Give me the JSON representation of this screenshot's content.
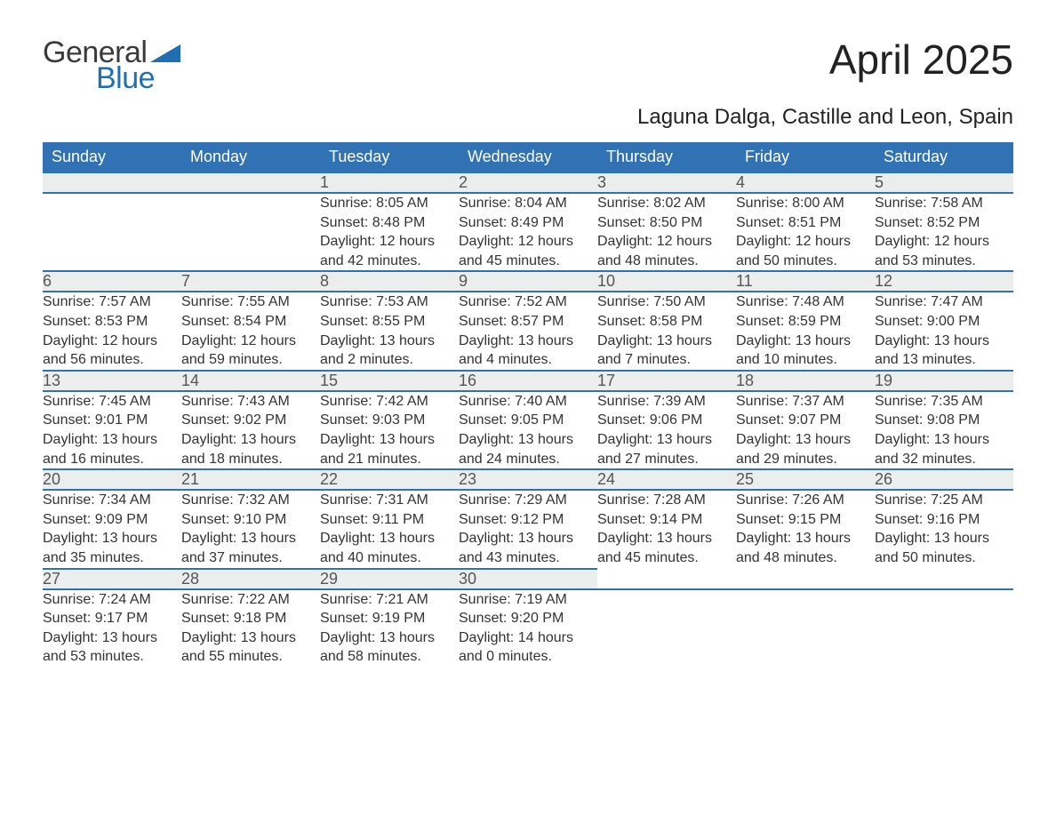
{
  "logo": {
    "text1": "General",
    "text2": "Blue",
    "wedge_color": "#1f6fb2"
  },
  "title": "April 2025",
  "location": "Laguna Dalga, Castille and Leon, Spain",
  "colors": {
    "header_bg": "#3072b3",
    "header_fg": "#ffffff",
    "daynum_bg": "#eceeee",
    "daynum_fg": "#555555",
    "rule": "#3072b3",
    "body_fg": "#333333",
    "page_bg": "#ffffff"
  },
  "typography": {
    "title_fontsize": 46,
    "location_fontsize": 24,
    "header_fontsize": 18,
    "daynum_fontsize": 18,
    "body_fontsize": 16
  },
  "weekdays": [
    "Sunday",
    "Monday",
    "Tuesday",
    "Wednesday",
    "Thursday",
    "Friday",
    "Saturday"
  ],
  "weeks": [
    [
      null,
      null,
      {
        "n": "1",
        "sunrise": "Sunrise: 8:05 AM",
        "sunset": "Sunset: 8:48 PM",
        "daylight": "Daylight: 12 hours and 42 minutes."
      },
      {
        "n": "2",
        "sunrise": "Sunrise: 8:04 AM",
        "sunset": "Sunset: 8:49 PM",
        "daylight": "Daylight: 12 hours and 45 minutes."
      },
      {
        "n": "3",
        "sunrise": "Sunrise: 8:02 AM",
        "sunset": "Sunset: 8:50 PM",
        "daylight": "Daylight: 12 hours and 48 minutes."
      },
      {
        "n": "4",
        "sunrise": "Sunrise: 8:00 AM",
        "sunset": "Sunset: 8:51 PM",
        "daylight": "Daylight: 12 hours and 50 minutes."
      },
      {
        "n": "5",
        "sunrise": "Sunrise: 7:58 AM",
        "sunset": "Sunset: 8:52 PM",
        "daylight": "Daylight: 12 hours and 53 minutes."
      }
    ],
    [
      {
        "n": "6",
        "sunrise": "Sunrise: 7:57 AM",
        "sunset": "Sunset: 8:53 PM",
        "daylight": "Daylight: 12 hours and 56 minutes."
      },
      {
        "n": "7",
        "sunrise": "Sunrise: 7:55 AM",
        "sunset": "Sunset: 8:54 PM",
        "daylight": "Daylight: 12 hours and 59 minutes."
      },
      {
        "n": "8",
        "sunrise": "Sunrise: 7:53 AM",
        "sunset": "Sunset: 8:55 PM",
        "daylight": "Daylight: 13 hours and 2 minutes."
      },
      {
        "n": "9",
        "sunrise": "Sunrise: 7:52 AM",
        "sunset": "Sunset: 8:57 PM",
        "daylight": "Daylight: 13 hours and 4 minutes."
      },
      {
        "n": "10",
        "sunrise": "Sunrise: 7:50 AM",
        "sunset": "Sunset: 8:58 PM",
        "daylight": "Daylight: 13 hours and 7 minutes."
      },
      {
        "n": "11",
        "sunrise": "Sunrise: 7:48 AM",
        "sunset": "Sunset: 8:59 PM",
        "daylight": "Daylight: 13 hours and 10 minutes."
      },
      {
        "n": "12",
        "sunrise": "Sunrise: 7:47 AM",
        "sunset": "Sunset: 9:00 PM",
        "daylight": "Daylight: 13 hours and 13 minutes."
      }
    ],
    [
      {
        "n": "13",
        "sunrise": "Sunrise: 7:45 AM",
        "sunset": "Sunset: 9:01 PM",
        "daylight": "Daylight: 13 hours and 16 minutes."
      },
      {
        "n": "14",
        "sunrise": "Sunrise: 7:43 AM",
        "sunset": "Sunset: 9:02 PM",
        "daylight": "Daylight: 13 hours and 18 minutes."
      },
      {
        "n": "15",
        "sunrise": "Sunrise: 7:42 AM",
        "sunset": "Sunset: 9:03 PM",
        "daylight": "Daylight: 13 hours and 21 minutes."
      },
      {
        "n": "16",
        "sunrise": "Sunrise: 7:40 AM",
        "sunset": "Sunset: 9:05 PM",
        "daylight": "Daylight: 13 hours and 24 minutes."
      },
      {
        "n": "17",
        "sunrise": "Sunrise: 7:39 AM",
        "sunset": "Sunset: 9:06 PM",
        "daylight": "Daylight: 13 hours and 27 minutes."
      },
      {
        "n": "18",
        "sunrise": "Sunrise: 7:37 AM",
        "sunset": "Sunset: 9:07 PM",
        "daylight": "Daylight: 13 hours and 29 minutes."
      },
      {
        "n": "19",
        "sunrise": "Sunrise: 7:35 AM",
        "sunset": "Sunset: 9:08 PM",
        "daylight": "Daylight: 13 hours and 32 minutes."
      }
    ],
    [
      {
        "n": "20",
        "sunrise": "Sunrise: 7:34 AM",
        "sunset": "Sunset: 9:09 PM",
        "daylight": "Daylight: 13 hours and 35 minutes."
      },
      {
        "n": "21",
        "sunrise": "Sunrise: 7:32 AM",
        "sunset": "Sunset: 9:10 PM",
        "daylight": "Daylight: 13 hours and 37 minutes."
      },
      {
        "n": "22",
        "sunrise": "Sunrise: 7:31 AM",
        "sunset": "Sunset: 9:11 PM",
        "daylight": "Daylight: 13 hours and 40 minutes."
      },
      {
        "n": "23",
        "sunrise": "Sunrise: 7:29 AM",
        "sunset": "Sunset: 9:12 PM",
        "daylight": "Daylight: 13 hours and 43 minutes."
      },
      {
        "n": "24",
        "sunrise": "Sunrise: 7:28 AM",
        "sunset": "Sunset: 9:14 PM",
        "daylight": "Daylight: 13 hours and 45 minutes."
      },
      {
        "n": "25",
        "sunrise": "Sunrise: 7:26 AM",
        "sunset": "Sunset: 9:15 PM",
        "daylight": "Daylight: 13 hours and 48 minutes."
      },
      {
        "n": "26",
        "sunrise": "Sunrise: 7:25 AM",
        "sunset": "Sunset: 9:16 PM",
        "daylight": "Daylight: 13 hours and 50 minutes."
      }
    ],
    [
      {
        "n": "27",
        "sunrise": "Sunrise: 7:24 AM",
        "sunset": "Sunset: 9:17 PM",
        "daylight": "Daylight: 13 hours and 53 minutes."
      },
      {
        "n": "28",
        "sunrise": "Sunrise: 7:22 AM",
        "sunset": "Sunset: 9:18 PM",
        "daylight": "Daylight: 13 hours and 55 minutes."
      },
      {
        "n": "29",
        "sunrise": "Sunrise: 7:21 AM",
        "sunset": "Sunset: 9:19 PM",
        "daylight": "Daylight: 13 hours and 58 minutes."
      },
      {
        "n": "30",
        "sunrise": "Sunrise: 7:19 AM",
        "sunset": "Sunset: 9:20 PM",
        "daylight": "Daylight: 14 hours and 0 minutes."
      },
      null,
      null,
      null
    ]
  ]
}
